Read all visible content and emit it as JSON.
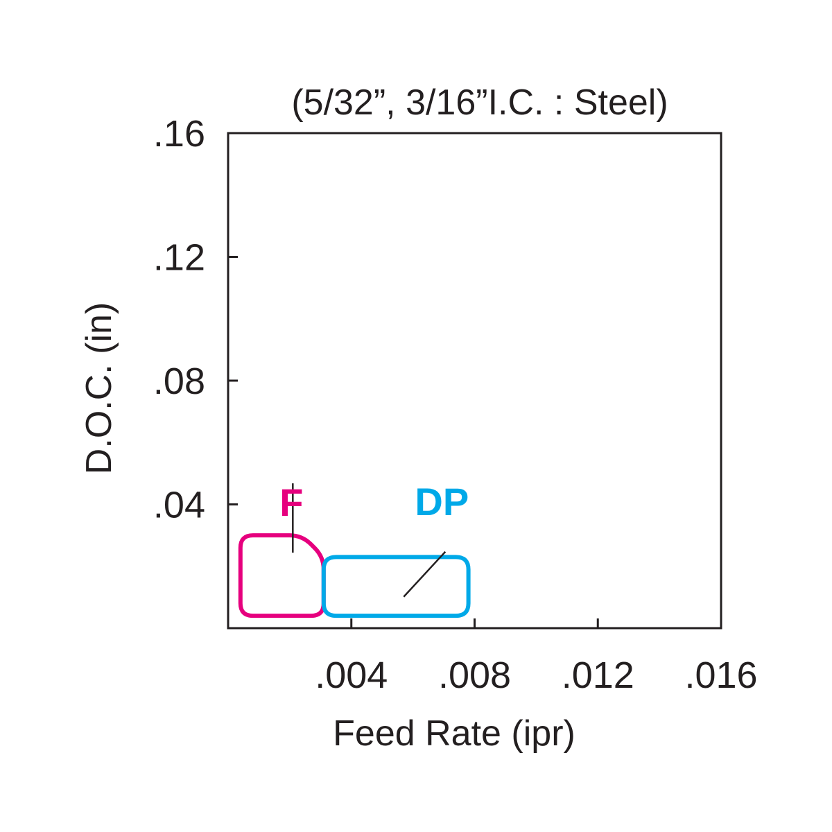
{
  "chart_data": {
    "type": "area",
    "title": "(5/32”, 3/16”I.C. : Steel)",
    "xlabel": "Feed Rate (ipr)",
    "ylabel": "D.O.C. (in)",
    "xlim": [
      0,
      0.016
    ],
    "ylim": [
      0,
      0.16
    ],
    "x_ticks": [
      {
        "value": 0.004,
        "label": ".004"
      },
      {
        "value": 0.008,
        "label": ".008"
      },
      {
        "value": 0.012,
        "label": ".012"
      },
      {
        "value": 0.016,
        "label": ".016"
      }
    ],
    "y_ticks": [
      {
        "value": 0.04,
        "label": ".04"
      },
      {
        "value": 0.08,
        "label": ".08"
      },
      {
        "value": 0.12,
        "label": ".12"
      },
      {
        "value": 0.16,
        "label": ".16"
      }
    ],
    "grid": false,
    "series": [
      {
        "name": "F",
        "color": "#e6007e",
        "polygon": [
          [
            0.0004,
            0.004
          ],
          [
            0.0031,
            0.004
          ],
          [
            0.0031,
            0.023
          ],
          [
            0.0024,
            0.03
          ],
          [
            0.0004,
            0.03
          ]
        ]
      },
      {
        "name": "DP",
        "color": "#00a9e8",
        "polygon": [
          [
            0.0031,
            0.004
          ],
          [
            0.0078,
            0.004
          ],
          [
            0.0078,
            0.023
          ],
          [
            0.0031,
            0.023
          ]
        ]
      }
    ]
  }
}
